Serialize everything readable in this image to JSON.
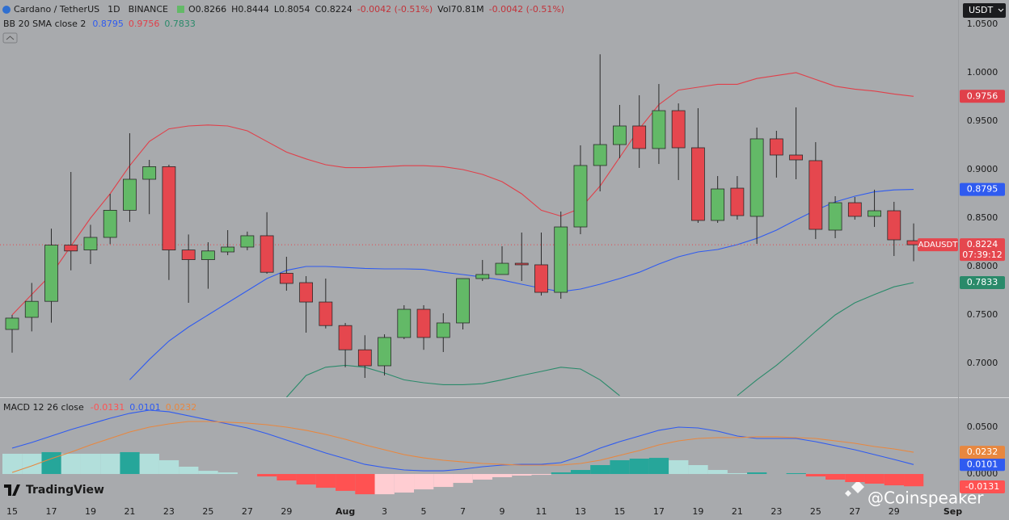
{
  "header": {
    "symbol": "Cardano / TetherUS",
    "interval": "1D",
    "exchange": "BINANCE",
    "ohlc": [
      "O0.8266",
      "H0.8444",
      "L0.8054",
      "C0.8224",
      "-0.0042 (-0.51%)",
      "Vol70.81M",
      "-0.0042 (-0.51%)"
    ],
    "currency": "USDT",
    "logo": "TradingView",
    "watermark": "@Coinspeaker"
  },
  "chart_data": [
    {
      "type": "candlestick",
      "indicator": "BB 20 SMA close 2",
      "categories": [
        "15",
        null,
        "17",
        null,
        "19",
        null,
        "21",
        null,
        "23",
        null,
        "25",
        null,
        "27",
        null,
        "29",
        null,
        null,
        "Aug",
        null,
        "3",
        null,
        "5",
        null,
        "7",
        null,
        "9",
        null,
        "11",
        null,
        "13",
        null,
        "15",
        null,
        "17",
        null,
        "19",
        null,
        "21",
        null,
        "23",
        null,
        "25",
        null,
        "27",
        null,
        "29",
        null,
        null,
        "Sep"
      ],
      "open": [
        0.735,
        0.7475,
        0.764,
        0.822,
        0.817,
        0.83,
        0.858,
        0.89,
        0.903,
        0.817,
        0.807,
        0.815,
        0.82,
        0.8317,
        0.793,
        0.7833,
        0.7633,
        0.739,
        0.714,
        0.6975,
        0.7267,
        0.7558,
        0.7267,
        0.7417,
        0.7875,
        0.7917,
        0.8033,
        0.8017,
        0.7733,
        0.8408,
        0.9042,
        0.9258,
        0.945,
        0.9217,
        0.9608,
        0.9225,
        0.8475,
        0.8808,
        0.8517,
        0.9317,
        0.915,
        0.9092,
        0.8375,
        0.8658,
        0.8517,
        0.8575,
        0.8266,
        null,
        null
      ],
      "high": [
        0.75,
        0.783,
        0.839,
        0.8975,
        0.843,
        0.875,
        0.9375,
        0.91,
        0.905,
        0.833,
        0.825,
        0.8375,
        0.836,
        0.856,
        0.81,
        0.79,
        0.7875,
        0.7417,
        0.729,
        0.73,
        0.76,
        0.76,
        0.7517,
        0.7875,
        0.8067,
        0.8208,
        0.835,
        0.835,
        0.8567,
        0.925,
        1.019,
        0.9667,
        0.9767,
        0.9883,
        0.9683,
        0.9633,
        0.8933,
        0.8933,
        0.9433,
        0.94,
        0.9642,
        0.9283,
        0.8725,
        0.8717,
        0.8792,
        0.8667,
        0.8444,
        null,
        null
      ],
      "low": [
        0.711,
        0.733,
        0.742,
        0.796,
        0.8025,
        0.823,
        0.846,
        0.854,
        0.786,
        0.7625,
        0.777,
        0.8117,
        0.8167,
        0.7925,
        0.775,
        0.7317,
        0.736,
        0.696,
        0.685,
        0.6875,
        0.725,
        0.714,
        0.7117,
        0.735,
        0.785,
        0.7917,
        0.785,
        0.77,
        0.7667,
        0.8333,
        0.8775,
        0.9117,
        0.9017,
        0.9058,
        0.8892,
        0.845,
        0.845,
        0.8483,
        0.8233,
        0.8917,
        0.89,
        0.8283,
        0.8292,
        0.8483,
        0.8408,
        0.8108,
        0.8054,
        null,
        null
      ],
      "close": [
        0.7467,
        0.764,
        0.822,
        0.816,
        0.83,
        0.858,
        0.89,
        0.903,
        0.817,
        0.807,
        0.816,
        0.82,
        0.8317,
        0.794,
        0.7825,
        0.7633,
        0.739,
        0.714,
        0.6975,
        0.7267,
        0.7558,
        0.7267,
        0.7417,
        0.7875,
        0.7917,
        0.8033,
        0.8017,
        0.7733,
        0.8408,
        0.9042,
        0.9258,
        0.945,
        0.9217,
        0.9608,
        0.9225,
        0.8475,
        0.88,
        0.8525,
        0.9317,
        0.915,
        0.91,
        0.8383,
        0.8658,
        0.8517,
        0.8575,
        0.8275,
        0.8224,
        null,
        null
      ],
      "up_color": "#63b967",
      "down_color": "#e5474e",
      "series": [
        {
          "color": "#2f5bf0",
          "last_label": "0.8795",
          "values": [
            null,
            null,
            null,
            null,
            null,
            null,
            0.683,
            0.704,
            0.723,
            0.7375,
            0.75,
            0.7625,
            0.775,
            0.7875,
            0.796,
            0.8,
            0.8,
            0.799,
            0.798,
            0.7975,
            0.7975,
            0.797,
            0.794,
            0.7917,
            0.789,
            0.786,
            0.7817,
            0.7775,
            0.774,
            0.7767,
            0.7817,
            0.7875,
            0.794,
            0.8025,
            0.81,
            0.815,
            0.8175,
            0.8225,
            0.829,
            0.8375,
            0.848,
            0.858,
            0.8667,
            0.8725,
            0.877,
            0.879,
            0.8795,
            null,
            null
          ]
        },
        {
          "color": "#e0404a",
          "last_label": "0.9756",
          "values": [
            0.75,
            0.771,
            0.792,
            0.821,
            0.85,
            0.875,
            0.904,
            0.929,
            0.942,
            0.945,
            0.946,
            0.945,
            0.94,
            0.929,
            0.918,
            0.911,
            0.905,
            0.902,
            0.902,
            0.903,
            0.904,
            0.904,
            0.903,
            0.9,
            0.895,
            0.8875,
            0.875,
            0.858,
            0.852,
            0.86,
            0.883,
            0.9125,
            0.942,
            0.967,
            0.982,
            0.985,
            0.988,
            0.988,
            0.994,
            0.997,
            1.0,
            0.993,
            0.986,
            0.983,
            0.981,
            0.978,
            0.9756,
            null,
            null
          ]
        },
        {
          "color": "#2a8a6a",
          "last_label": "0.7833",
          "values": [
            null,
            null,
            null,
            null,
            null,
            null,
            null,
            null,
            null,
            null,
            null,
            null,
            null,
            null,
            0.665,
            0.6875,
            0.696,
            0.698,
            0.696,
            0.69,
            0.683,
            0.68,
            0.678,
            0.678,
            0.679,
            0.683,
            0.6875,
            0.6917,
            0.696,
            0.6942,
            0.683,
            0.6667,
            null,
            null,
            null,
            null,
            null,
            0.6667,
            0.683,
            0.698,
            0.715,
            0.733,
            0.75,
            0.7625,
            0.771,
            0.779,
            0.7833,
            null,
            null
          ]
        }
      ],
      "symbol_label": "ADAUSDT",
      "price_label": "0.8224",
      "countdown": "07:39:12",
      "ylim": [
        0.665,
        1.075
      ],
      "yticks": [
        {
          "value": 0.7,
          "label": "0.7000"
        },
        {
          "value": 0.75,
          "label": "0.7500"
        },
        {
          "value": 0.8,
          "label": "0.8000"
        },
        {
          "value": 0.85,
          "label": "0.8500"
        },
        {
          "value": 0.9,
          "label": "0.9000"
        },
        {
          "value": 0.95,
          "label": "0.9500"
        },
        {
          "value": 1.0,
          "label": "1.0000"
        },
        {
          "value": 1.05,
          "label": "1.0500"
        }
      ]
    },
    {
      "type": "macd",
      "indicator": "MACD 12 26 close",
      "histogram": {
        "last_label": "-0.0131",
        "colors": [
          "#26a69a",
          "#b2dfdb",
          "#ff5252",
          "#ffcdd2"
        ],
        "values": [
          0.0216,
          0.0216,
          0.0233,
          0.0216,
          0.0216,
          0.0216,
          0.0233,
          0.0216,
          0.0147,
          0.0078,
          0.0034,
          0.0017,
          0,
          -0.0026,
          -0.0069,
          -0.0112,
          -0.0147,
          -0.018,
          -0.0216,
          -0.0216,
          -0.0198,
          -0.0164,
          -0.0138,
          -0.0095,
          -0.006,
          -0.0034,
          -0.0017,
          -0.0009,
          0.0017,
          0.0043,
          0.0095,
          0.0147,
          0.0164,
          0.0172,
          0.0147,
          0.0095,
          0.0043,
          0.0009,
          0.0017,
          0,
          0.0009,
          -0.0026,
          -0.006,
          -0.0086,
          -0.0103,
          -0.0121,
          -0.0131,
          null,
          null
        ]
      },
      "series": [
        {
          "color": "#2f5bf0",
          "last_label": "0.0101",
          "values": [
            0.0276,
            0.0336,
            0.0405,
            0.0474,
            0.0534,
            0.0595,
            0.0647,
            0.0681,
            0.0664,
            0.0621,
            0.0578,
            0.0534,
            0.0491,
            0.0431,
            0.0362,
            0.0293,
            0.0224,
            0.0164,
            0.0103,
            0.0069,
            0.0043,
            0.0034,
            0.0034,
            0.0052,
            0.0078,
            0.0095,
            0.0103,
            0.0103,
            0.0121,
            0.019,
            0.0276,
            0.0345,
            0.0405,
            0.0466,
            0.05,
            0.0491,
            0.0457,
            0.0405,
            0.0379,
            0.0379,
            0.0379,
            0.0345,
            0.0302,
            0.0259,
            0.0207,
            0.0155,
            0.0101,
            null,
            null
          ]
        },
        {
          "color": "#e8873f",
          "last_label": "0.0232",
          "values": [
            0.0017,
            0.0086,
            0.0164,
            0.0233,
            0.031,
            0.0379,
            0.0448,
            0.05,
            0.0534,
            0.056,
            0.056,
            0.0552,
            0.0543,
            0.0526,
            0.05,
            0.0466,
            0.0422,
            0.0371,
            0.031,
            0.0259,
            0.0207,
            0.0172,
            0.0147,
            0.0129,
            0.0112,
            0.0103,
            0.0095,
            0.0095,
            0.0095,
            0.0112,
            0.0147,
            0.0198,
            0.025,
            0.031,
            0.0353,
            0.0379,
            0.0388,
            0.0388,
            0.0397,
            0.0397,
            0.0388,
            0.0379,
            0.0353,
            0.0328,
            0.0293,
            0.0267,
            0.0232,
            null,
            null
          ]
        }
      ],
      "ylim": [
        -0.0241,
        0.081
      ],
      "yticks": [
        {
          "value": 0,
          "label": "0.0000"
        },
        {
          "value": 0.05,
          "label": "0.0500"
        }
      ]
    }
  ]
}
